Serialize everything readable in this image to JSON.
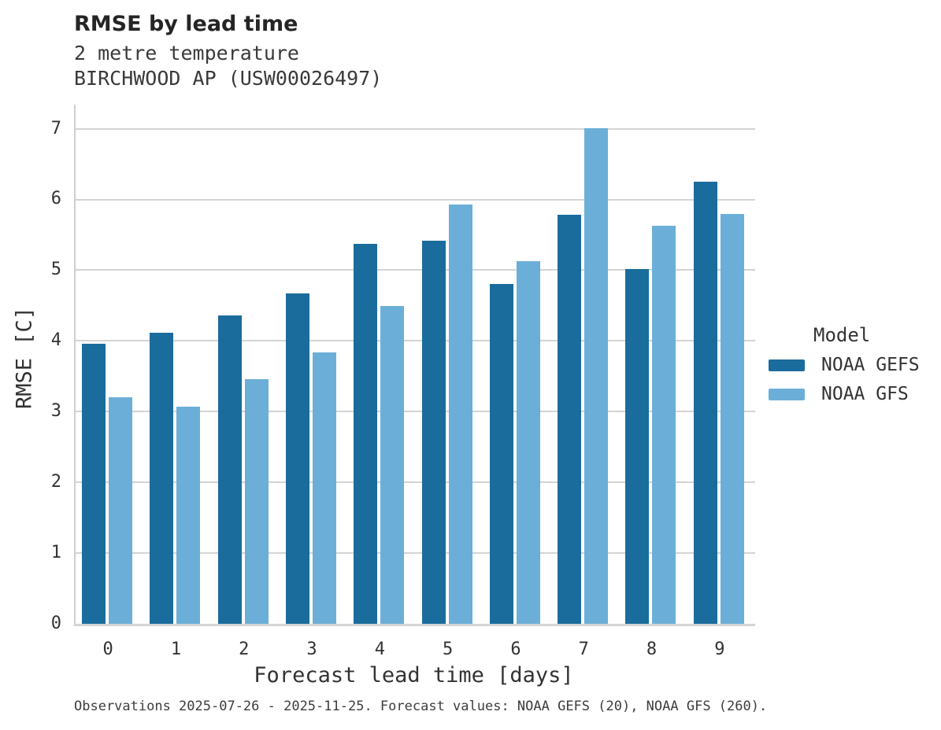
{
  "header": {
    "title": "RMSE by lead time",
    "subtitle_line1": "2 metre temperature",
    "subtitle_line2": "BIRCHWOOD AP (USW00026497)"
  },
  "chart_data": {
    "type": "bar",
    "title": "RMSE by lead time",
    "subtitle": [
      "2 metre temperature",
      "BIRCHWOOD AP (USW00026497)"
    ],
    "categories": [
      "0",
      "1",
      "2",
      "3",
      "4",
      "5",
      "6",
      "7",
      "8",
      "9"
    ],
    "series": [
      {
        "name": "NOAA GEFS",
        "color": "#1A6C9C",
        "values": [
          3.96,
          4.12,
          4.36,
          4.67,
          5.37,
          5.42,
          4.8,
          5.78,
          5.02,
          6.25
        ]
      },
      {
        "name": "NOAA GFS",
        "color": "#6BAFD8",
        "values": [
          3.2,
          3.07,
          3.46,
          3.84,
          4.49,
          5.93,
          5.13,
          7.01,
          5.63,
          5.79
        ]
      }
    ],
    "xlabel": "Forecast lead time [days]",
    "ylabel": "RMSE [C]",
    "ylim": [
      0,
      7.34
    ],
    "yticks": [
      0,
      1,
      2,
      3,
      4,
      5,
      6,
      7
    ],
    "grid": "horizontal",
    "legend": {
      "title": "Model",
      "position": "right"
    }
  },
  "footer": {
    "note": "Observations 2025-07-26 - 2025-11-25. Forecast values: NOAA GEFS (20), NOAA GFS (260)."
  },
  "colors": {
    "gefs": "#1A6C9C",
    "gfs": "#6BAFD8",
    "gridline": "#D4D4D4",
    "axis_line": "#CFCFCF"
  }
}
